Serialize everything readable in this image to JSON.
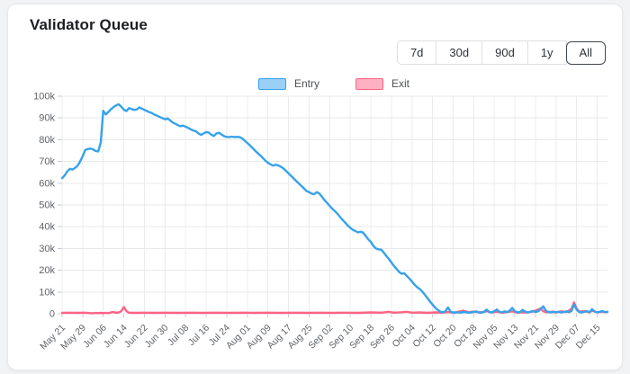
{
  "header": {
    "time_ranges": {
      "options": [
        "7d",
        "30d",
        "90d",
        "1y",
        "All"
      ],
      "selected": "All"
    }
  },
  "chart_data": {
    "type": "line",
    "title": "Validator Queue",
    "xlabel": "",
    "ylabel": "",
    "ylim": [
      0,
      100000
    ],
    "grid": true,
    "legend_position": "top-center",
    "y_tick_labels": [
      "0",
      "10k",
      "20k",
      "30k",
      "40k",
      "50k",
      "60k",
      "70k",
      "80k",
      "90k",
      "100k"
    ],
    "y_tick_values": [
      0,
      10,
      20,
      30,
      40,
      50,
      60,
      70,
      80,
      90,
      100
    ],
    "x_tick_labels": [
      "May 21",
      "May 29",
      "Jun 06",
      "Jun 14",
      "Jun 22",
      "Jun 30",
      "Jul 08",
      "Jul 16",
      "Jul 24",
      "Aug 01",
      "Aug 09",
      "Aug 17",
      "Aug 25",
      "Sep 02",
      "Sep 10",
      "Sep 18",
      "Sep 26",
      "Oct 04",
      "Oct 12",
      "Oct 20",
      "Oct 28",
      "Nov 05",
      "Nov 13",
      "Nov 21",
      "Nov 29",
      "Dec 07",
      "Dec 15"
    ],
    "x_tick_interval_days": 8,
    "x_total_days": 212,
    "units": "thousands of validators (k)",
    "series": [
      {
        "name": "Entry",
        "color": "#36A2EB",
        "swatch_fill": "#9AD0F5",
        "sampling": "daily values in k, day 0 = May 21",
        "values": [
          62.3,
          63.6,
          65.4,
          66.6,
          66.3,
          67.0,
          68.0,
          70.0,
          72.5,
          75.3,
          75.7,
          75.9,
          75.6,
          74.8,
          74.6,
          78.5,
          93.3,
          91.6,
          92.8,
          94.0,
          95.0,
          95.8,
          96.3,
          95.2,
          93.8,
          93.2,
          94.5,
          94.1,
          93.7,
          93.9,
          94.8,
          94.3,
          93.7,
          93.2,
          92.6,
          92.2,
          91.5,
          91.0,
          90.4,
          89.9,
          89.4,
          89.8,
          88.9,
          87.9,
          87.3,
          86.7,
          86.2,
          86.5,
          86.0,
          85.4,
          84.8,
          84.2,
          83.9,
          82.9,
          82.2,
          82.9,
          83.5,
          83.3,
          82.3,
          81.7,
          82.9,
          83.2,
          82.4,
          81.6,
          81.3,
          81.2,
          81.4,
          81.2,
          81.3,
          81.2,
          80.6,
          79.5,
          78.5,
          77.4,
          76.2,
          75.0,
          73.9,
          72.8,
          71.6,
          70.4,
          69.4,
          68.7,
          68.1,
          68.5,
          68.2,
          67.6,
          66.8,
          65.7,
          64.6,
          63.4,
          62.2,
          61.0,
          59.9,
          58.8,
          57.6,
          56.4,
          55.9,
          55.2,
          55.0,
          55.9,
          55.3,
          53.8,
          52.2,
          51.0,
          49.6,
          48.3,
          47.2,
          46.0,
          44.5,
          43.2,
          42.0,
          40.6,
          39.5,
          38.6,
          38.0,
          37.4,
          37.7,
          37.3,
          35.8,
          34.2,
          33.0,
          31.2,
          30.0,
          29.6,
          29.5,
          28.2,
          26.6,
          25.2,
          23.6,
          22.0,
          20.6,
          19.2,
          18.4,
          18.6,
          17.4,
          16.2,
          14.8,
          13.4,
          12.2,
          11.4,
          10.2,
          8.8,
          7.2,
          5.6,
          4.2,
          2.8,
          1.8,
          1.0,
          0.6,
          1.2,
          2.9,
          1.0,
          0.6,
          0.5,
          0.7,
          0.5,
          0.8,
          0.7,
          0.5,
          0.6,
          0.8,
          1.1,
          0.6,
          0.5,
          0.9,
          1.9,
          0.8,
          0.6,
          1.2,
          2.0,
          0.9,
          0.6,
          1.1,
          0.7,
          1.5,
          2.7,
          1.2,
          0.6,
          0.8,
          1.8,
          1.0,
          0.6,
          0.9,
          1.3,
          0.8,
          1.1,
          2.2,
          3.4,
          1.5,
          0.8,
          0.6,
          1.0,
          0.7,
          0.9,
          0.6,
          0.8,
          1.1,
          0.7,
          1.3,
          4.3,
          1.9,
          0.8,
          0.6,
          0.9,
          1.2,
          0.7,
          2.1,
          1.0,
          0.6,
          0.9,
          1.3,
          0.7,
          0.9
        ]
      },
      {
        "name": "Exit",
        "color": "#FF6384",
        "swatch_fill": "#FFB1C1",
        "sampling": "[day, value-in-k] waypoints, day 0 = May 21",
        "points": [
          [
            0,
            0.4
          ],
          [
            3,
            0.5
          ],
          [
            6,
            0.4
          ],
          [
            9,
            0.5
          ],
          [
            11,
            0.3
          ],
          [
            12,
            0.2
          ],
          [
            13,
            0.4
          ],
          [
            14,
            0.3
          ],
          [
            15,
            0.4
          ],
          [
            16,
            0.3
          ],
          [
            17,
            0.4
          ],
          [
            18,
            0.3
          ],
          [
            19,
            0.6
          ],
          [
            20,
            0.8
          ],
          [
            21,
            0.5
          ],
          [
            22,
            0.6
          ],
          [
            23,
            1.1
          ],
          [
            24,
            3.1
          ],
          [
            25,
            1.2
          ],
          [
            26,
            0.5
          ],
          [
            28,
            0.4
          ],
          [
            32,
            0.5
          ],
          [
            36,
            0.4
          ],
          [
            40,
            0.5
          ],
          [
            45,
            0.4
          ],
          [
            50,
            0.5
          ],
          [
            55,
            0.4
          ],
          [
            60,
            0.5
          ],
          [
            65,
            0.4
          ],
          [
            70,
            0.5
          ],
          [
            75,
            0.4
          ],
          [
            80,
            0.5
          ],
          [
            85,
            0.4
          ],
          [
            90,
            0.5
          ],
          [
            95,
            0.4
          ],
          [
            100,
            0.5
          ],
          [
            105,
            0.4
          ],
          [
            110,
            0.5
          ],
          [
            115,
            0.4
          ],
          [
            120,
            0.6
          ],
          [
            124,
            0.5
          ],
          [
            127,
            0.9
          ],
          [
            129,
            0.5
          ],
          [
            132,
            0.7
          ],
          [
            134,
            0.9
          ],
          [
            136,
            0.5
          ],
          [
            139,
            0.6
          ],
          [
            142,
            0.4
          ],
          [
            145,
            0.6
          ],
          [
            148,
            0.5
          ],
          [
            150,
            0.8
          ],
          [
            152,
            0.5
          ],
          [
            154,
            0.9
          ],
          [
            156,
            1.4
          ],
          [
            158,
            0.7
          ],
          [
            160,
            1.0
          ],
          [
            162,
            0.6
          ],
          [
            164,
            0.8
          ],
          [
            165,
            1.2
          ],
          [
            167,
            0.6
          ],
          [
            169,
            0.9
          ],
          [
            171,
            0.5
          ],
          [
            173,
            0.8
          ],
          [
            175,
            1.1
          ],
          [
            177,
            0.5
          ],
          [
            179,
            0.7
          ],
          [
            181,
            0.6
          ],
          [
            183,
            1.0
          ],
          [
            185,
            1.9
          ],
          [
            186,
            2.4
          ],
          [
            187,
            1.2
          ],
          [
            188,
            0.7
          ],
          [
            190,
            0.9
          ],
          [
            192,
            0.6
          ],
          [
            194,
            1.1
          ],
          [
            196,
            0.8
          ],
          [
            198,
            2.2
          ],
          [
            199,
            5.2
          ],
          [
            200,
            2.4
          ],
          [
            201,
            1.0
          ],
          [
            203,
            1.2
          ],
          [
            205,
            0.6
          ],
          [
            206,
            1.4
          ],
          [
            208,
            0.7
          ],
          [
            210,
            0.9
          ],
          [
            212,
            0.8
          ]
        ]
      }
    ],
    "colors": {
      "grid_h": "#e8e9ea",
      "grid_v": "#ececed",
      "tick": "#c9cccf",
      "axis_text": "#5f6368"
    }
  }
}
